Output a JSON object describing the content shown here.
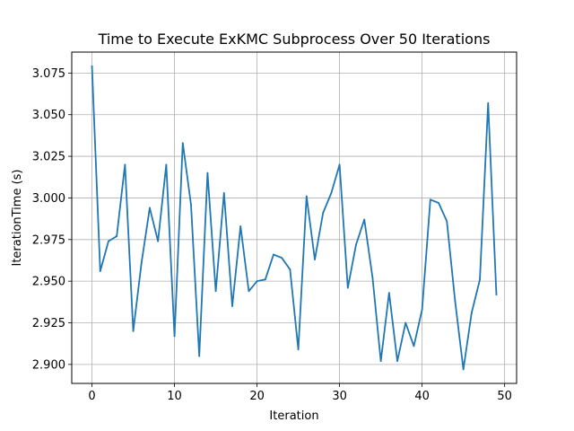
{
  "chart_data": {
    "type": "line",
    "title": "Time to Execute ExKMC Subprocess Over 50 Iterations",
    "xlabel": "Iteration",
    "ylabel": "IterationTime (s)",
    "xlim": [
      -2.45,
      51.45
    ],
    "ylim": [
      2.8886,
      3.0876
    ],
    "grid": true,
    "xticks": [
      0,
      10,
      20,
      30,
      40,
      50
    ],
    "yticks": [
      2.9,
      2.925,
      2.95,
      2.975,
      3.0,
      3.025,
      3.05,
      3.075
    ],
    "ytick_labels": [
      "2.900",
      "2.925",
      "2.950",
      "2.975",
      "3.000",
      "3.025",
      "3.050",
      "3.075"
    ],
    "series": [
      {
        "color": "#1f77b4",
        "x": [
          0,
          1,
          2,
          3,
          4,
          5,
          6,
          7,
          8,
          9,
          10,
          11,
          12,
          13,
          14,
          15,
          16,
          17,
          18,
          19,
          20,
          21,
          22,
          23,
          24,
          25,
          26,
          27,
          28,
          29,
          30,
          31,
          32,
          33,
          34,
          35,
          36,
          37,
          38,
          39,
          40,
          41,
          42,
          43,
          44,
          45,
          46,
          47,
          48,
          49
        ],
        "values": [
          3.079,
          2.956,
          2.974,
          2.977,
          3.02,
          2.92,
          2.961,
          2.994,
          2.974,
          3.02,
          2.917,
          3.033,
          2.996,
          2.905,
          3.015,
          2.944,
          3.003,
          2.935,
          2.983,
          2.944,
          2.95,
          2.951,
          2.966,
          2.964,
          2.957,
          2.909,
          3.001,
          2.963,
          2.991,
          3.003,
          3.02,
          2.946,
          2.972,
          2.987,
          2.952,
          2.902,
          2.943,
          2.902,
          2.925,
          2.911,
          2.933,
          2.999,
          2.997,
          2.986,
          2.938,
          2.897,
          2.931,
          2.951,
          3.057,
          2.942
        ]
      }
    ]
  }
}
